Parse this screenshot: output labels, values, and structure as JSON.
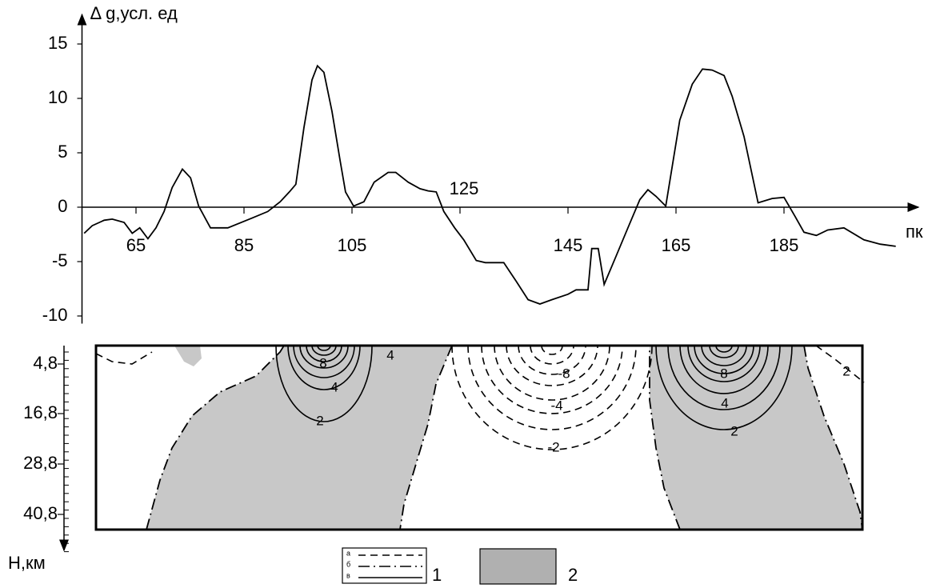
{
  "chart_data": {
    "type": "line",
    "y_label": "Δ g,усл. ед",
    "x_label": "пк",
    "x": [
      55.4,
      56.9,
      59.1,
      60.6,
      62.8,
      64.3,
      65.7,
      67.2,
      68.7,
      70.2,
      71.7,
      73.6,
      75.1,
      76.6,
      78.8,
      82.0,
      86.5,
      89.4,
      91.7,
      93.4,
      94.6,
      96.1,
      97.6,
      98.6,
      99.8,
      101.3,
      102.8,
      103.8,
      105.3,
      107.2,
      109.1,
      111.7,
      113.1,
      115.4,
      117.6,
      119.1,
      120.6,
      122.0,
      124.0,
      125.7,
      128.0,
      129.7,
      133.1,
      135.4,
      137.6,
      139.8,
      142.0,
      145.0,
      146.5,
      148.7,
      149.4,
      150.6,
      151.7,
      153.9,
      156.1,
      158.3,
      159.8,
      161.3,
      163.1,
      165.7,
      168.0,
      169.9,
      171.7,
      173.9,
      175.4,
      177.6,
      180.2,
      182.8,
      185.0,
      187.0,
      188.7,
      191.0,
      193.1,
      196.1,
      199.8,
      202.8,
      205.7
    ],
    "series": [
      {
        "color": "#000000",
        "values": [
          -2.4,
          -1.7,
          -1.2,
          -1.1,
          -1.4,
          -2.4,
          -1.9,
          -2.9,
          -1.9,
          -0.4,
          1.8,
          3.5,
          2.7,
          0.1,
          -1.9,
          -1.9,
          -1.0,
          -0.4,
          0.5,
          1.4,
          2.1,
          7.3,
          11.7,
          13.0,
          12.4,
          8.8,
          4.3,
          1.4,
          0.1,
          0.5,
          2.3,
          3.2,
          3.2,
          2.3,
          1.7,
          1.5,
          1.4,
          -0.4,
          -1.9,
          -3.0,
          -4.9,
          -5.1,
          -5.1,
          -6.8,
          -8.5,
          -8.9,
          -8.5,
          -8.0,
          -7.6,
          -7.6,
          -3.8,
          -3.8,
          -7.1,
          -4.5,
          -1.9,
          0.7,
          1.6,
          1.0,
          0.1,
          8.0,
          11.3,
          12.7,
          12.6,
          12.1,
          10.2,
          6.5,
          0.4,
          0.8,
          0.9,
          -0.8,
          -2.3,
          -2.6,
          -2.1,
          -1.9,
          -3.0,
          -3.4,
          -3.6
        ]
      }
    ],
    "xlim": [
      55,
      209
    ],
    "ylim": [
      -10.7,
      18
    ],
    "xticks": [
      65,
      85,
      105,
      125,
      145,
      165,
      185
    ],
    "yticks": [
      15,
      10,
      5,
      0,
      -5,
      -10
    ]
  },
  "section": {
    "depth_axis": {
      "label": "Н,км",
      "ticks": [
        "4,8",
        "16,8",
        "28,8",
        "40,8"
      ]
    },
    "contour_labels": [
      "8",
      "4",
      "2",
      "4",
      "-8",
      "-4",
      "-2",
      "8",
      "4",
      "2",
      "2"
    ]
  },
  "legend": {
    "line_types": [
      "а",
      "б",
      "в"
    ],
    "items": [
      "1",
      "2"
    ]
  }
}
